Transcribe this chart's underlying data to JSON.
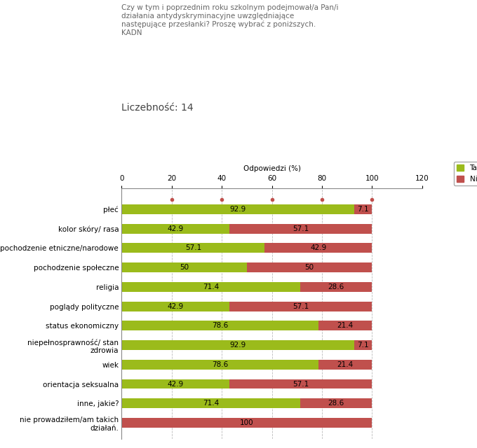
{
  "title_line1": "Czy w tym i poprzednim roku szkolnym podejmował/a Pan/i",
  "title_line2": "działania antydyskryminacyjne uwzględniające",
  "title_line3": "następujące przesłanki? Proszę wybrać z poniższych.",
  "title_line4": "KADN",
  "subtitle": "Liczebność: 14",
  "xlabel": "Odpowiedzi (%)",
  "categories": [
    "płeć",
    "kolor skóry/ rasa",
    "pochodzenie etniczne/narodowe",
    "pochodzenie społeczne",
    "religia",
    "poglądy polityczne",
    "status ekonomiczny",
    "niepełnosprawność/ stan\nzdrowia",
    "wiek",
    "orientacja seksualna",
    "inne, jakie?",
    "nie prowadziłem/am takich\ndziałań."
  ],
  "tak_values": [
    92.9,
    42.9,
    57.1,
    50,
    71.4,
    42.9,
    78.6,
    92.9,
    78.6,
    42.9,
    71.4,
    0
  ],
  "nie_values": [
    7.1,
    57.1,
    42.9,
    50,
    28.6,
    57.1,
    21.4,
    7.1,
    21.4,
    57.1,
    28.6,
    100
  ],
  "tak_labels": [
    "92.9",
    "42.9",
    "57.1",
    "50",
    "71.4",
    "42.9",
    "78.6",
    "92.9",
    "78.6",
    "42.9",
    "71.4",
    ""
  ],
  "nie_labels": [
    "7.1",
    "57.1",
    "42.9",
    "50",
    "28.6",
    "57.1",
    "21.4",
    "7.1",
    "21.4",
    "57.1",
    "28.6",
    "100"
  ],
  "tak_color": "#9BBB1B",
  "nie_color": "#C0504D",
  "xlim": [
    0,
    120
  ],
  "xticks": [
    0,
    20,
    40,
    60,
    80,
    100,
    120
  ],
  "bar_height": 0.5,
  "background_color": "#FFFFFF",
  "grid_color": "#BBBBBB",
  "text_color": "#000000",
  "label_fontsize": 7.5,
  "tick_fontsize": 7.5,
  "title_fontsize": 7.5,
  "subtitle_fontsize": 10,
  "legend_fontsize": 7.5,
  "dot_color": "#C0504D",
  "dot_size": 3
}
